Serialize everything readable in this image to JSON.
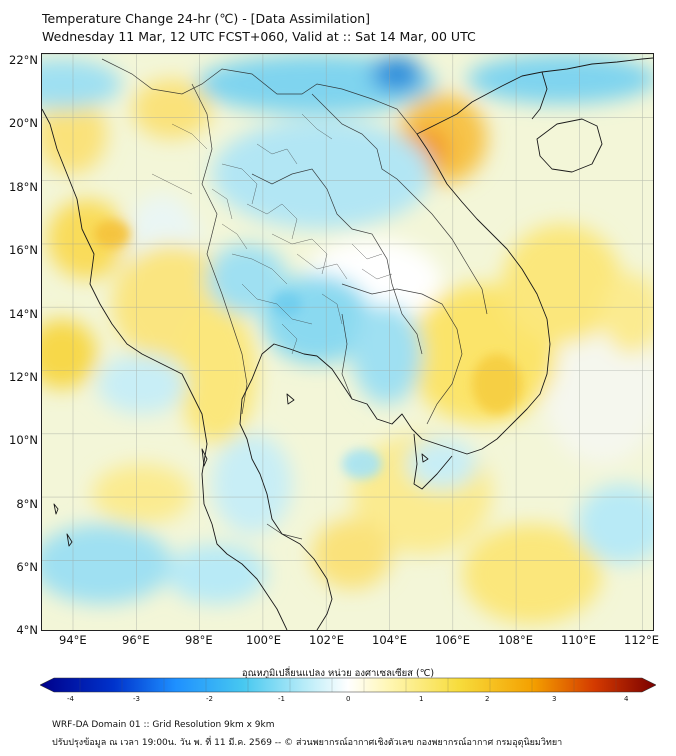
{
  "title_line1": "Temperature Change 24-hr (℃) - [Data Assimilation]",
  "title_line2": "Wednesday 11 Mar, 12 UTC FCST+060, Valid at :: Sat 14 Mar, 00 UTC",
  "lat_labels": [
    "22°N",
    "20°N",
    "18°N",
    "16°N",
    "14°N",
    "12°N",
    "10°N",
    "8°N",
    "6°N",
    "4°N"
  ],
  "lon_labels": [
    "94°E",
    "96°E",
    "98°E",
    "100°E",
    "102°E",
    "104°E",
    "106°E",
    "108°E",
    "110°E",
    "112°E"
  ],
  "colorbar": {
    "title": "อุณหภูมิเปลี่ยนแปลง หน่วย องศาเซลเซียส (℃)",
    "ticks": [
      "-4",
      "-3",
      "-2",
      "-1",
      "0",
      "1",
      "2",
      "3",
      "4"
    ],
    "colors": [
      "#00008a",
      "#0033cc",
      "#1e90ff",
      "#47c8f0",
      "#b8ecf8",
      "#ffffff",
      "#fff6b0",
      "#f7dc3c",
      "#f4a000",
      "#d43a00",
      "#7a0000"
    ]
  },
  "footer_line1": "WRF-DA Domain 01 :: Grid Resolution 9km x 9km",
  "footer_line2": "ปรับปรุงข้อมูล ณ เวลา 19:00น. วัน พ. ที่ 11 มี.ค. 2569 -- © ส่วนพยากรณ์อากาศเชิงตัวเลข กองพยากรณ์อากาศ กรมอุตุนิยมวิทยา"
}
